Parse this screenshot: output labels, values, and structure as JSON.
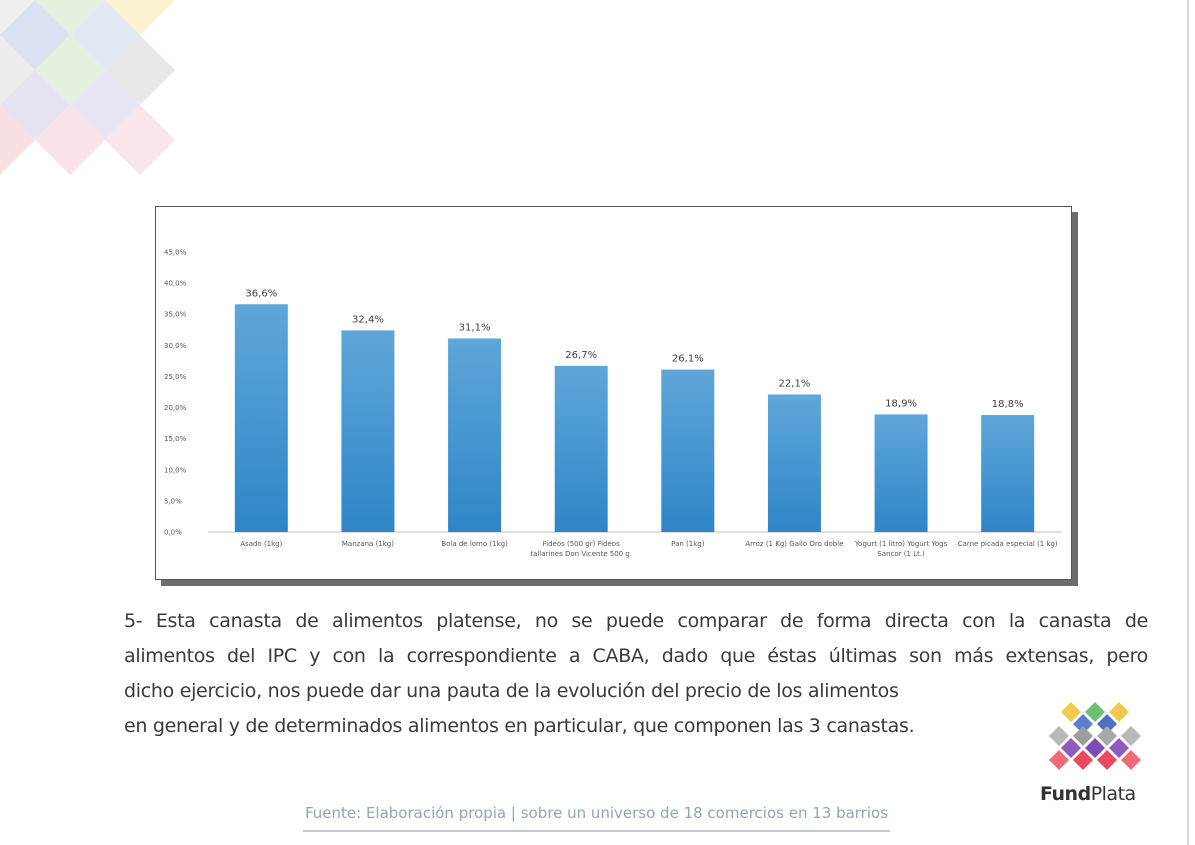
{
  "chart_data": {
    "type": "bar",
    "categories": [
      "Asado (1kg)",
      "Manzana (1kg)",
      "Bola de lomo (1kg)",
      "Fideos (500 gr) Fideos tallarines Don Vicente 500 g.",
      "Pan (1kg)",
      "Arroz (1 Kg) Gallo Oro doble",
      "Yogurt (1 litro) Yogurt Yogs Sancor (1 Lt.)",
      "Carne picada especial (1 kg)"
    ],
    "category_lines": [
      [
        "Asado (1kg)"
      ],
      [
        "Manzana (1kg)"
      ],
      [
        "Bola de lomo (1kg)"
      ],
      [
        "Fideos (500 gr) Fideos",
        "tallarines Don Vicente 500 g."
      ],
      [
        "Pan (1kg)"
      ],
      [
        "Arroz (1 Kg) Gallo Oro doble"
      ],
      [
        "Yogurt (1 litro) Yogurt Yogs",
        "Sancor (1 Lt.)"
      ],
      [
        "Carne picada especial (1 kg)"
      ]
    ],
    "values": [
      36.6,
      32.4,
      31.1,
      26.7,
      26.1,
      22.1,
      18.9,
      18.8
    ],
    "value_labels": [
      "36,6%",
      "32,4%",
      "31,1%",
      "26,7%",
      "26,1%",
      "22,1%",
      "18,9%",
      "18,8%"
    ],
    "ylim": [
      0,
      45
    ],
    "y_ticks": [
      "0,0%",
      "5,0%",
      "10,0%",
      "15,0%",
      "20,0%",
      "25,0%",
      "30,0%",
      "35,0%",
      "40,0%",
      "45,0%"
    ],
    "grid": false,
    "legend": "none",
    "bar_color_top": "#5fa6d9",
    "bar_color_bottom": "#2e86c8"
  },
  "paragraph": {
    "line1": "5- Esta canasta de alimentos platense, no se puede comparar de forma directa con la canasta de",
    "line2": "alimentos del IPC y con la correspondiente a CABA, dado que éstas últimas son más extensas, pero",
    "line3": "dicho ejercicio, nos puede dar una pauta de la evolución del precio de los alimentos",
    "line4": "en general y de determinados alimentos en particular, que componen las 3 canastas."
  },
  "source": "Fuente: Elaboración propia | sobre un universo de 18 comercios en 13 barrios",
  "logo": {
    "name_bold": "Fund",
    "name_regular": "Plata"
  },
  "colors": {
    "text": "#3a3a3a",
    "source_text": "#8fa7b0",
    "source_rule": "#b7cfd3"
  }
}
